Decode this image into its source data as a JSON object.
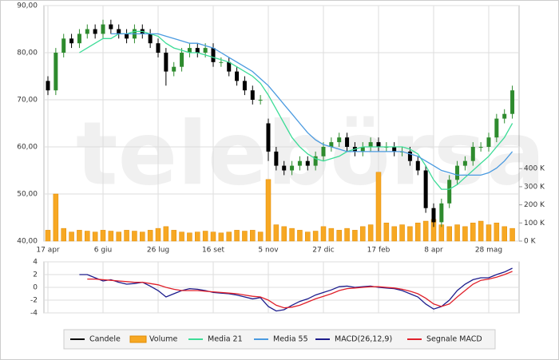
{
  "chart_data": [
    {
      "type": "candlestick",
      "watermark": "telebörsa",
      "categories": [
        "17 apr",
        null,
        null,
        null,
        null,
        null,
        null,
        "6 giu",
        null,
        null,
        null,
        null,
        null,
        null,
        "26 lug",
        null,
        null,
        null,
        null,
        null,
        null,
        "16 set",
        null,
        null,
        null,
        null,
        null,
        null,
        "5 nov",
        null,
        null,
        null,
        null,
        null,
        null,
        "27 dic",
        null,
        null,
        null,
        null,
        null,
        null,
        "17 feb",
        null,
        null,
        null,
        null,
        null,
        null,
        "8 apr",
        null,
        null,
        null,
        null,
        null,
        null,
        "28 mag",
        null,
        null,
        null
      ],
      "ylim": [
        40,
        90
      ],
      "yticks": [
        {
          "value": 40,
          "label": "40,00"
        },
        {
          "value": 50,
          "label": "50,00"
        },
        {
          "value": 60,
          "label": "60,00"
        },
        {
          "value": 70,
          "label": "70,00"
        },
        {
          "value": 80,
          "label": "80,00"
        },
        {
          "value": 90,
          "label": "90,00"
        }
      ],
      "y2lim": [
        0,
        1300
      ],
      "y2ticks": [
        {
          "value": 0,
          "label": "0 K"
        },
        {
          "value": 100,
          "label": "100 K"
        },
        {
          "value": 200,
          "label": "200 K"
        },
        {
          "value": 300,
          "label": "300 K"
        },
        {
          "value": 400,
          "label": "400 K"
        }
      ],
      "grid": true,
      "series": [
        {
          "name": "Candele",
          "type": "candlestick",
          "color": "#000000",
          "up_color": "#2e8b2e",
          "open": [
            74,
            72,
            80,
            83,
            82,
            84,
            85,
            84,
            86,
            85,
            84,
            83,
            85,
            84,
            82,
            80,
            76,
            77,
            80,
            81,
            80,
            81,
            78,
            78,
            76,
            74,
            72,
            70,
            65,
            59,
            56,
            55,
            56,
            57,
            56,
            58,
            60,
            61,
            62,
            60,
            59,
            60,
            61,
            60,
            60,
            59,
            59,
            57,
            55,
            47,
            44,
            48,
            53,
            56,
            57,
            60,
            60,
            62,
            66,
            67
          ],
          "high": [
            75,
            81,
            84,
            84,
            85,
            86,
            86,
            87,
            87,
            86,
            85,
            86,
            86,
            85,
            83,
            81,
            78,
            81,
            82,
            82,
            82,
            82,
            79,
            79,
            77,
            75,
            73,
            71,
            66,
            60,
            57,
            57,
            58,
            58,
            59,
            61,
            62,
            63,
            63,
            61,
            61,
            62,
            62,
            61,
            61,
            60,
            60,
            58,
            56,
            48,
            49,
            54,
            57,
            58,
            61,
            61,
            63,
            67,
            68,
            73
          ],
          "low": [
            71,
            71,
            79,
            81,
            81,
            83,
            83,
            83,
            84,
            83,
            82,
            82,
            83,
            81,
            79,
            73,
            75,
            76,
            79,
            79,
            79,
            77,
            77,
            75,
            73,
            71,
            69,
            69,
            57,
            55,
            54,
            54,
            55,
            55,
            55,
            57,
            59,
            60,
            59,
            58,
            58,
            59,
            59,
            59,
            58,
            58,
            56,
            54,
            46,
            43,
            43,
            47,
            52,
            55,
            56,
            59,
            59,
            61,
            65,
            66
          ],
          "close": [
            72,
            80,
            83,
            82,
            84,
            85,
            84,
            86,
            85,
            84,
            83,
            85,
            84,
            82,
            80,
            76,
            77,
            80,
            81,
            80,
            81,
            78,
            78,
            76,
            74,
            72,
            70,
            70,
            59,
            56,
            55,
            56,
            57,
            56,
            58,
            60,
            61,
            62,
            60,
            59,
            60,
            61,
            60,
            60,
            59,
            59,
            57,
            55,
            47,
            44,
            48,
            53,
            56,
            57,
            60,
            60,
            62,
            66,
            67,
            72
          ]
        },
        {
          "name": "Volume",
          "type": "bar",
          "axis": "y2",
          "color": "#f7a823",
          "values": [
            60,
            260,
            70,
            50,
            60,
            55,
            50,
            60,
            55,
            50,
            60,
            55,
            50,
            60,
            70,
            80,
            60,
            50,
            45,
            50,
            55,
            50,
            45,
            50,
            60,
            55,
            60,
            50,
            340,
            90,
            80,
            70,
            60,
            50,
            55,
            80,
            70,
            60,
            70,
            60,
            80,
            90,
            380,
            100,
            80,
            90,
            80,
            100,
            110,
            120,
            90,
            80,
            90,
            80,
            100,
            110,
            90,
            100,
            80,
            70
          ]
        },
        {
          "name": "Media 21",
          "type": "line",
          "color": "#3ddc97",
          "values": [
            null,
            null,
            null,
            null,
            80,
            81,
            82,
            83,
            83,
            84,
            84,
            84.5,
            84.5,
            84,
            83.5,
            82,
            81,
            80.5,
            80,
            80,
            79.5,
            79,
            78.5,
            78,
            77,
            76,
            75,
            73.5,
            71,
            68,
            65,
            62,
            60,
            58.5,
            57.5,
            57,
            57.5,
            58,
            59,
            59.5,
            60,
            60,
            60,
            60,
            60,
            60,
            59.5,
            58.5,
            56,
            53,
            51,
            51,
            52,
            53.5,
            55,
            56.5,
            58,
            60,
            62,
            65
          ]
        },
        {
          "name": "Media 55",
          "type": "line",
          "color": "#4a9ae0",
          "values": [
            null,
            null,
            null,
            null,
            null,
            null,
            null,
            null,
            84,
            84,
            84,
            84,
            84,
            84,
            84,
            83.5,
            83,
            82.5,
            82,
            82,
            81.5,
            81,
            80,
            79,
            78,
            77,
            76,
            74.5,
            73,
            71,
            69,
            67,
            65,
            63,
            61.5,
            60.5,
            60,
            59.5,
            59,
            59,
            59,
            59,
            59,
            59,
            59,
            59,
            58.5,
            58,
            57,
            56,
            55,
            54.5,
            54,
            54,
            54,
            54,
            54.5,
            55.5,
            57,
            59
          ]
        }
      ]
    },
    {
      "type": "line",
      "ylim": [
        -4,
        4
      ],
      "yticks": [
        -4,
        -2,
        0,
        2,
        4
      ],
      "grid": true,
      "series": [
        {
          "name": "MACD(26,12,9)",
          "color": "#1c1c8c",
          "values": [
            null,
            null,
            null,
            null,
            2,
            2,
            1.5,
            1,
            1.2,
            0.8,
            0.5,
            0.6,
            0.8,
            0.2,
            -0.5,
            -1.5,
            -1,
            -0.5,
            -0.2,
            -0.3,
            -0.5,
            -0.8,
            -0.9,
            -1,
            -1.2,
            -1.5,
            -1.8,
            -1.6,
            -3,
            -3.7,
            -3.5,
            -2.8,
            -2.2,
            -1.8,
            -1.2,
            -0.8,
            -0.4,
            0.1,
            0.2,
            0,
            0.1,
            0.2,
            0,
            -0.1,
            -0.2,
            -0.5,
            -1,
            -1.5,
            -2.6,
            -3.4,
            -3,
            -2,
            -0.5,
            0.5,
            1.2,
            1.5,
            1.5,
            2,
            2.4,
            3
          ]
        },
        {
          "name": "Segnale MACD",
          "color": "#e0202a",
          "values": [
            null,
            null,
            null,
            null,
            null,
            1.3,
            1.3,
            1.2,
            1.1,
            1,
            0.9,
            0.8,
            0.8,
            0.6,
            0.4,
            0,
            -0.3,
            -0.5,
            -0.5,
            -0.5,
            -0.6,
            -0.7,
            -0.8,
            -0.9,
            -1,
            -1.2,
            -1.4,
            -1.5,
            -2,
            -2.8,
            -3.2,
            -3.1,
            -2.8,
            -2.3,
            -1.8,
            -1.4,
            -1,
            -0.5,
            -0.2,
            -0.1,
            0,
            0.1,
            0.1,
            0,
            -0.1,
            -0.3,
            -0.6,
            -1,
            -1.7,
            -2.6,
            -3,
            -2.6,
            -1.5,
            -0.5,
            0.5,
            1.1,
            1.3,
            1.6,
            2,
            2.5
          ]
        }
      ]
    }
  ]
}
